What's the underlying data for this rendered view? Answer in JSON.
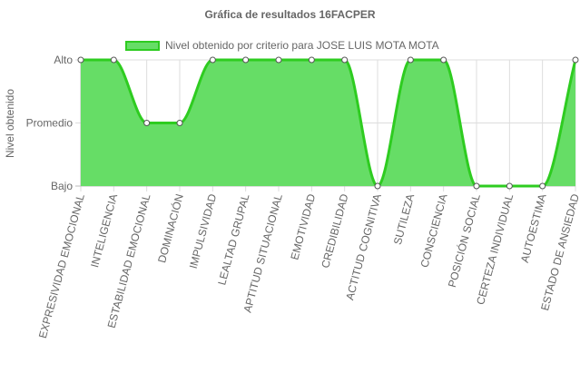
{
  "chart_data": {
    "type": "area",
    "title": "Gráfica de resultados 16FACPER",
    "ylabel": "Nivel obtenido",
    "y_levels": [
      "Bajo",
      "Promedio",
      "Alto"
    ],
    "categories": [
      "EXPRESIVIDAD EMOCIONAL",
      "INTELIGENCIA",
      "ESTABILIDAD EMOCIONAL",
      "DOMINACIÓN",
      "IMPULSIVIDAD",
      "LEALTAD GRUPAL",
      "APTITUD SITUACIONAL",
      "EMOTIVIDAD",
      "CREDIBILIDAD",
      "ACTITUD COGNITIVA",
      "SUTILEZA",
      "CONSCIENCIA",
      "POSICIÓN SOCIAL",
      "CERTEZA INDIVIDUAL",
      "AUTOESTIMA",
      "ESTADO DE ANSIEDAD"
    ],
    "series": [
      {
        "name": "Nivel obtenido por criterio para JOSE LUIS MOTA MOTA",
        "values": [
          "Alto",
          "Alto",
          "Promedio",
          "Promedio",
          "Alto",
          "Alto",
          "Alto",
          "Alto",
          "Alto",
          "Bajo",
          "Alto",
          "Alto",
          "Bajo",
          "Bajo",
          "Bajo",
          "Alto"
        ]
      }
    ],
    "colors": {
      "fill": "#66dd66",
      "line": "#2ecc20",
      "grid": "#dddddd",
      "axis_text": "#666666"
    },
    "legend": "top",
    "grid": true
  }
}
